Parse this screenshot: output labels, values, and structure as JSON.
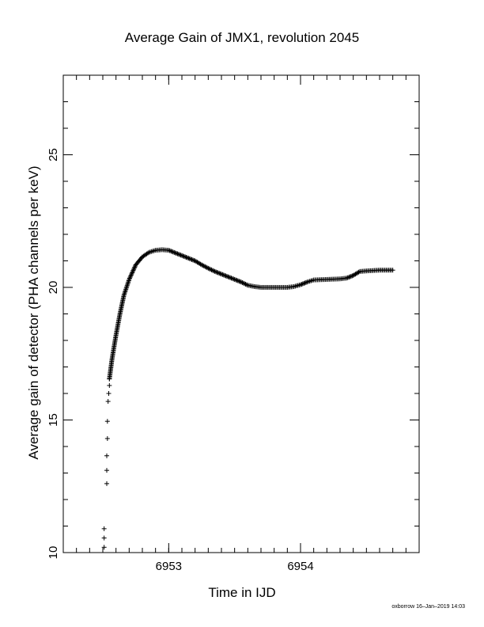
{
  "chart_data": {
    "type": "scatter",
    "title": "Average Gain of JMX1, revolution 2045",
    "xlabel": "Time in IJD",
    "ylabel": "Average gain of detector (PHA channels per keV)",
    "xlim": [
      6952.2,
      6954.9
    ],
    "ylim": [
      10,
      28
    ],
    "x_ticks": [
      6953,
      6954
    ],
    "y_ticks": [
      10,
      15,
      20,
      25
    ],
    "x_minor_step": 0.1,
    "y_minor_step": 1,
    "marker": "+",
    "grid": false,
    "credit": "oxborrow 16–Jan–2019 14:03",
    "series": [
      {
        "points": [
          [
            6952.51,
            10.2
          ],
          [
            6952.51,
            10.55
          ],
          [
            6952.51,
            10.9
          ],
          [
            6952.53,
            12.6
          ],
          [
            6952.53,
            13.1
          ],
          [
            6952.53,
            13.65
          ],
          [
            6952.535,
            14.3
          ],
          [
            6952.535,
            14.95
          ],
          [
            6952.54,
            15.7
          ],
          [
            6952.545,
            16.0
          ],
          [
            6952.55,
            16.3
          ],
          [
            6952.55,
            16.55
          ]
        ],
        "curve": [
          [
            6952.55,
            16.55
          ],
          [
            6952.57,
            17.3
          ],
          [
            6952.6,
            18.2
          ],
          [
            6952.63,
            19.0
          ],
          [
            6952.66,
            19.7
          ],
          [
            6952.7,
            20.3
          ],
          [
            6952.75,
            20.85
          ],
          [
            6952.8,
            21.15
          ],
          [
            6952.85,
            21.32
          ],
          [
            6952.9,
            21.4
          ],
          [
            6952.95,
            21.42
          ],
          [
            6953.0,
            21.4
          ],
          [
            6953.05,
            21.3
          ],
          [
            6953.1,
            21.2
          ],
          [
            6953.15,
            21.1
          ],
          [
            6953.2,
            21.0
          ],
          [
            6953.25,
            20.85
          ],
          [
            6953.3,
            20.72
          ],
          [
            6953.35,
            20.6
          ],
          [
            6953.4,
            20.5
          ],
          [
            6953.45,
            20.4
          ],
          [
            6953.5,
            20.3
          ],
          [
            6953.55,
            20.2
          ],
          [
            6953.6,
            20.08
          ],
          [
            6953.65,
            20.03
          ],
          [
            6953.7,
            20.0
          ],
          [
            6953.8,
            20.0
          ],
          [
            6953.9,
            20.0
          ],
          [
            6953.95,
            20.03
          ],
          [
            6954.0,
            20.1
          ],
          [
            6954.05,
            20.2
          ],
          [
            6954.1,
            20.28
          ],
          [
            6954.2,
            20.3
          ],
          [
            6954.3,
            20.32
          ],
          [
            6954.35,
            20.35
          ],
          [
            6954.4,
            20.45
          ],
          [
            6954.45,
            20.6
          ],
          [
            6954.5,
            20.62
          ],
          [
            6954.6,
            20.65
          ],
          [
            6954.7,
            20.65
          ]
        ]
      }
    ]
  }
}
